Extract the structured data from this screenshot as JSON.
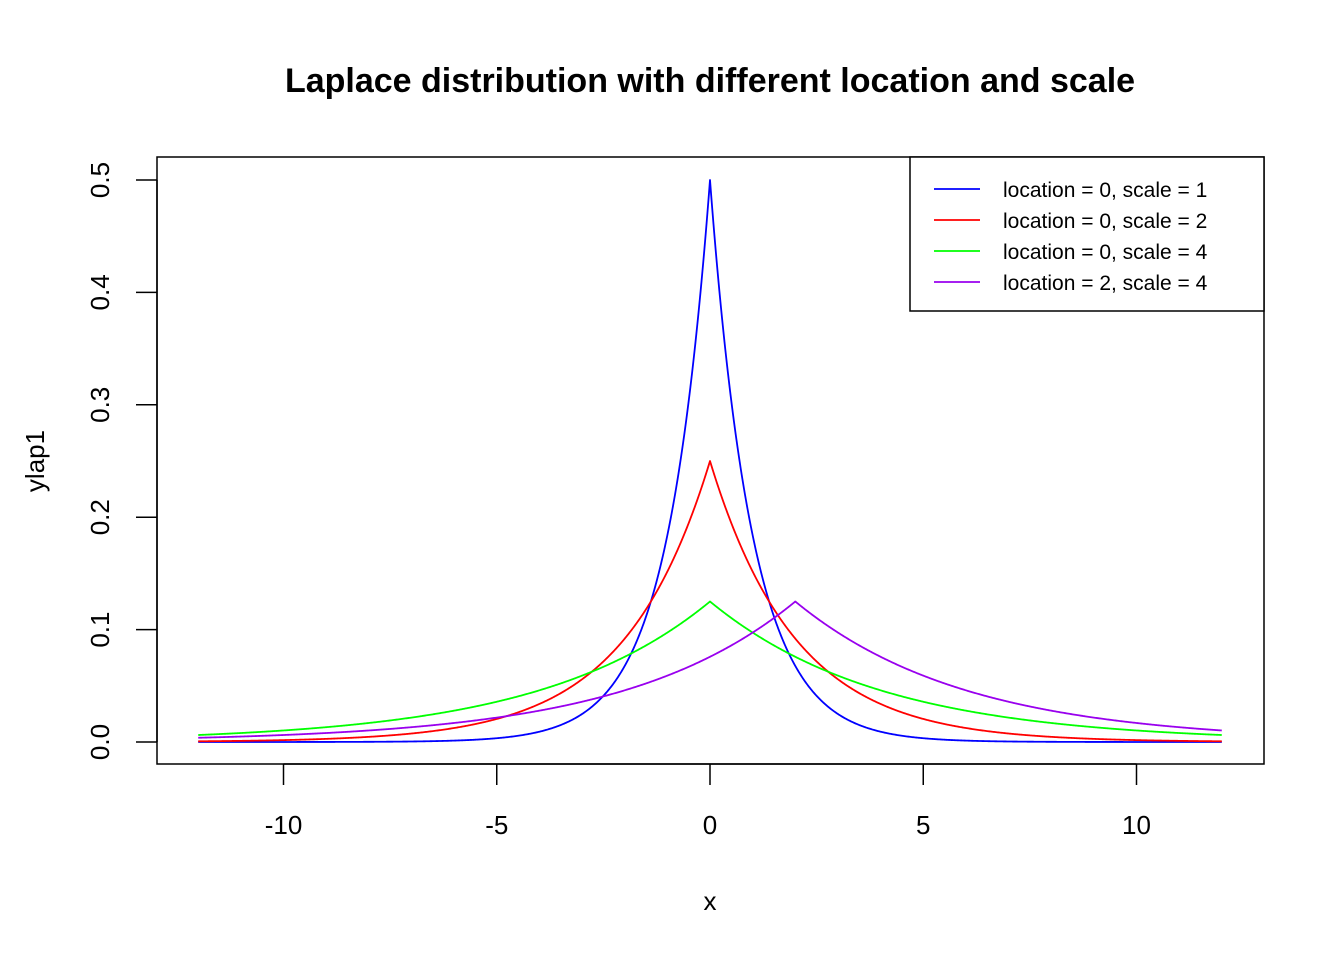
{
  "chart_data": {
    "type": "line",
    "title": "Laplace distribution with different location and scale",
    "xlabel": "x",
    "ylabel": "ylap1",
    "xlim": [
      -12,
      12
    ],
    "ylim": [
      0,
      0.5
    ],
    "x_ticks": [
      -10,
      -5,
      0,
      5,
      10
    ],
    "x_tick_labels": [
      "-10",
      "-5",
      "0",
      "5",
      "10"
    ],
    "y_ticks": [
      0,
      0.1,
      0.2,
      0.3,
      0.4,
      0.5
    ],
    "y_tick_labels": [
      "0.0",
      "0.1",
      "0.2",
      "0.3",
      "0.4",
      "0.5"
    ],
    "grid": false,
    "legend_position": "top-right",
    "x_range": [
      -12,
      12
    ],
    "series": [
      {
        "name": "location = 0, scale = 1",
        "location": 0,
        "scale": 1,
        "color": "#0000ff",
        "peak": 0.5
      },
      {
        "name": "location = 0, scale = 2",
        "location": 0,
        "scale": 2,
        "color": "#ff0000",
        "peak": 0.25
      },
      {
        "name": "location = 0, scale = 4",
        "location": 0,
        "scale": 4,
        "color": "#00ff00",
        "peak": 0.125
      },
      {
        "name": "location = 2, scale = 4",
        "location": 2,
        "scale": 4,
        "color": "#9900ee",
        "peak": 0.125
      }
    ]
  }
}
